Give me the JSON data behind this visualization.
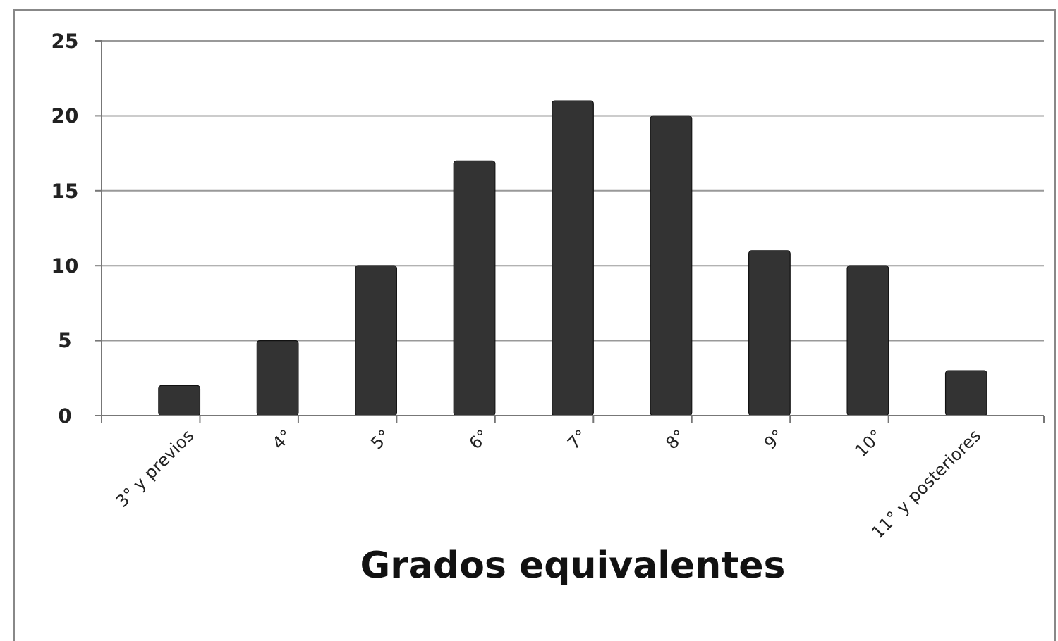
{
  "chart_data": {
    "type": "bar",
    "xlabel": "Grados equivalentes",
    "categories": [
      "3° y previos",
      "4°",
      "5°",
      "6°",
      "7°",
      "8°",
      "9°",
      "10°",
      "11° y posteriores"
    ],
    "values": [
      2,
      5,
      10,
      17,
      21,
      20,
      11,
      10,
      3
    ],
    "color": "#333333",
    "ylim": [
      0,
      25
    ],
    "yticks": [
      0,
      5,
      10,
      15,
      20,
      25
    ],
    "grid": "y"
  }
}
